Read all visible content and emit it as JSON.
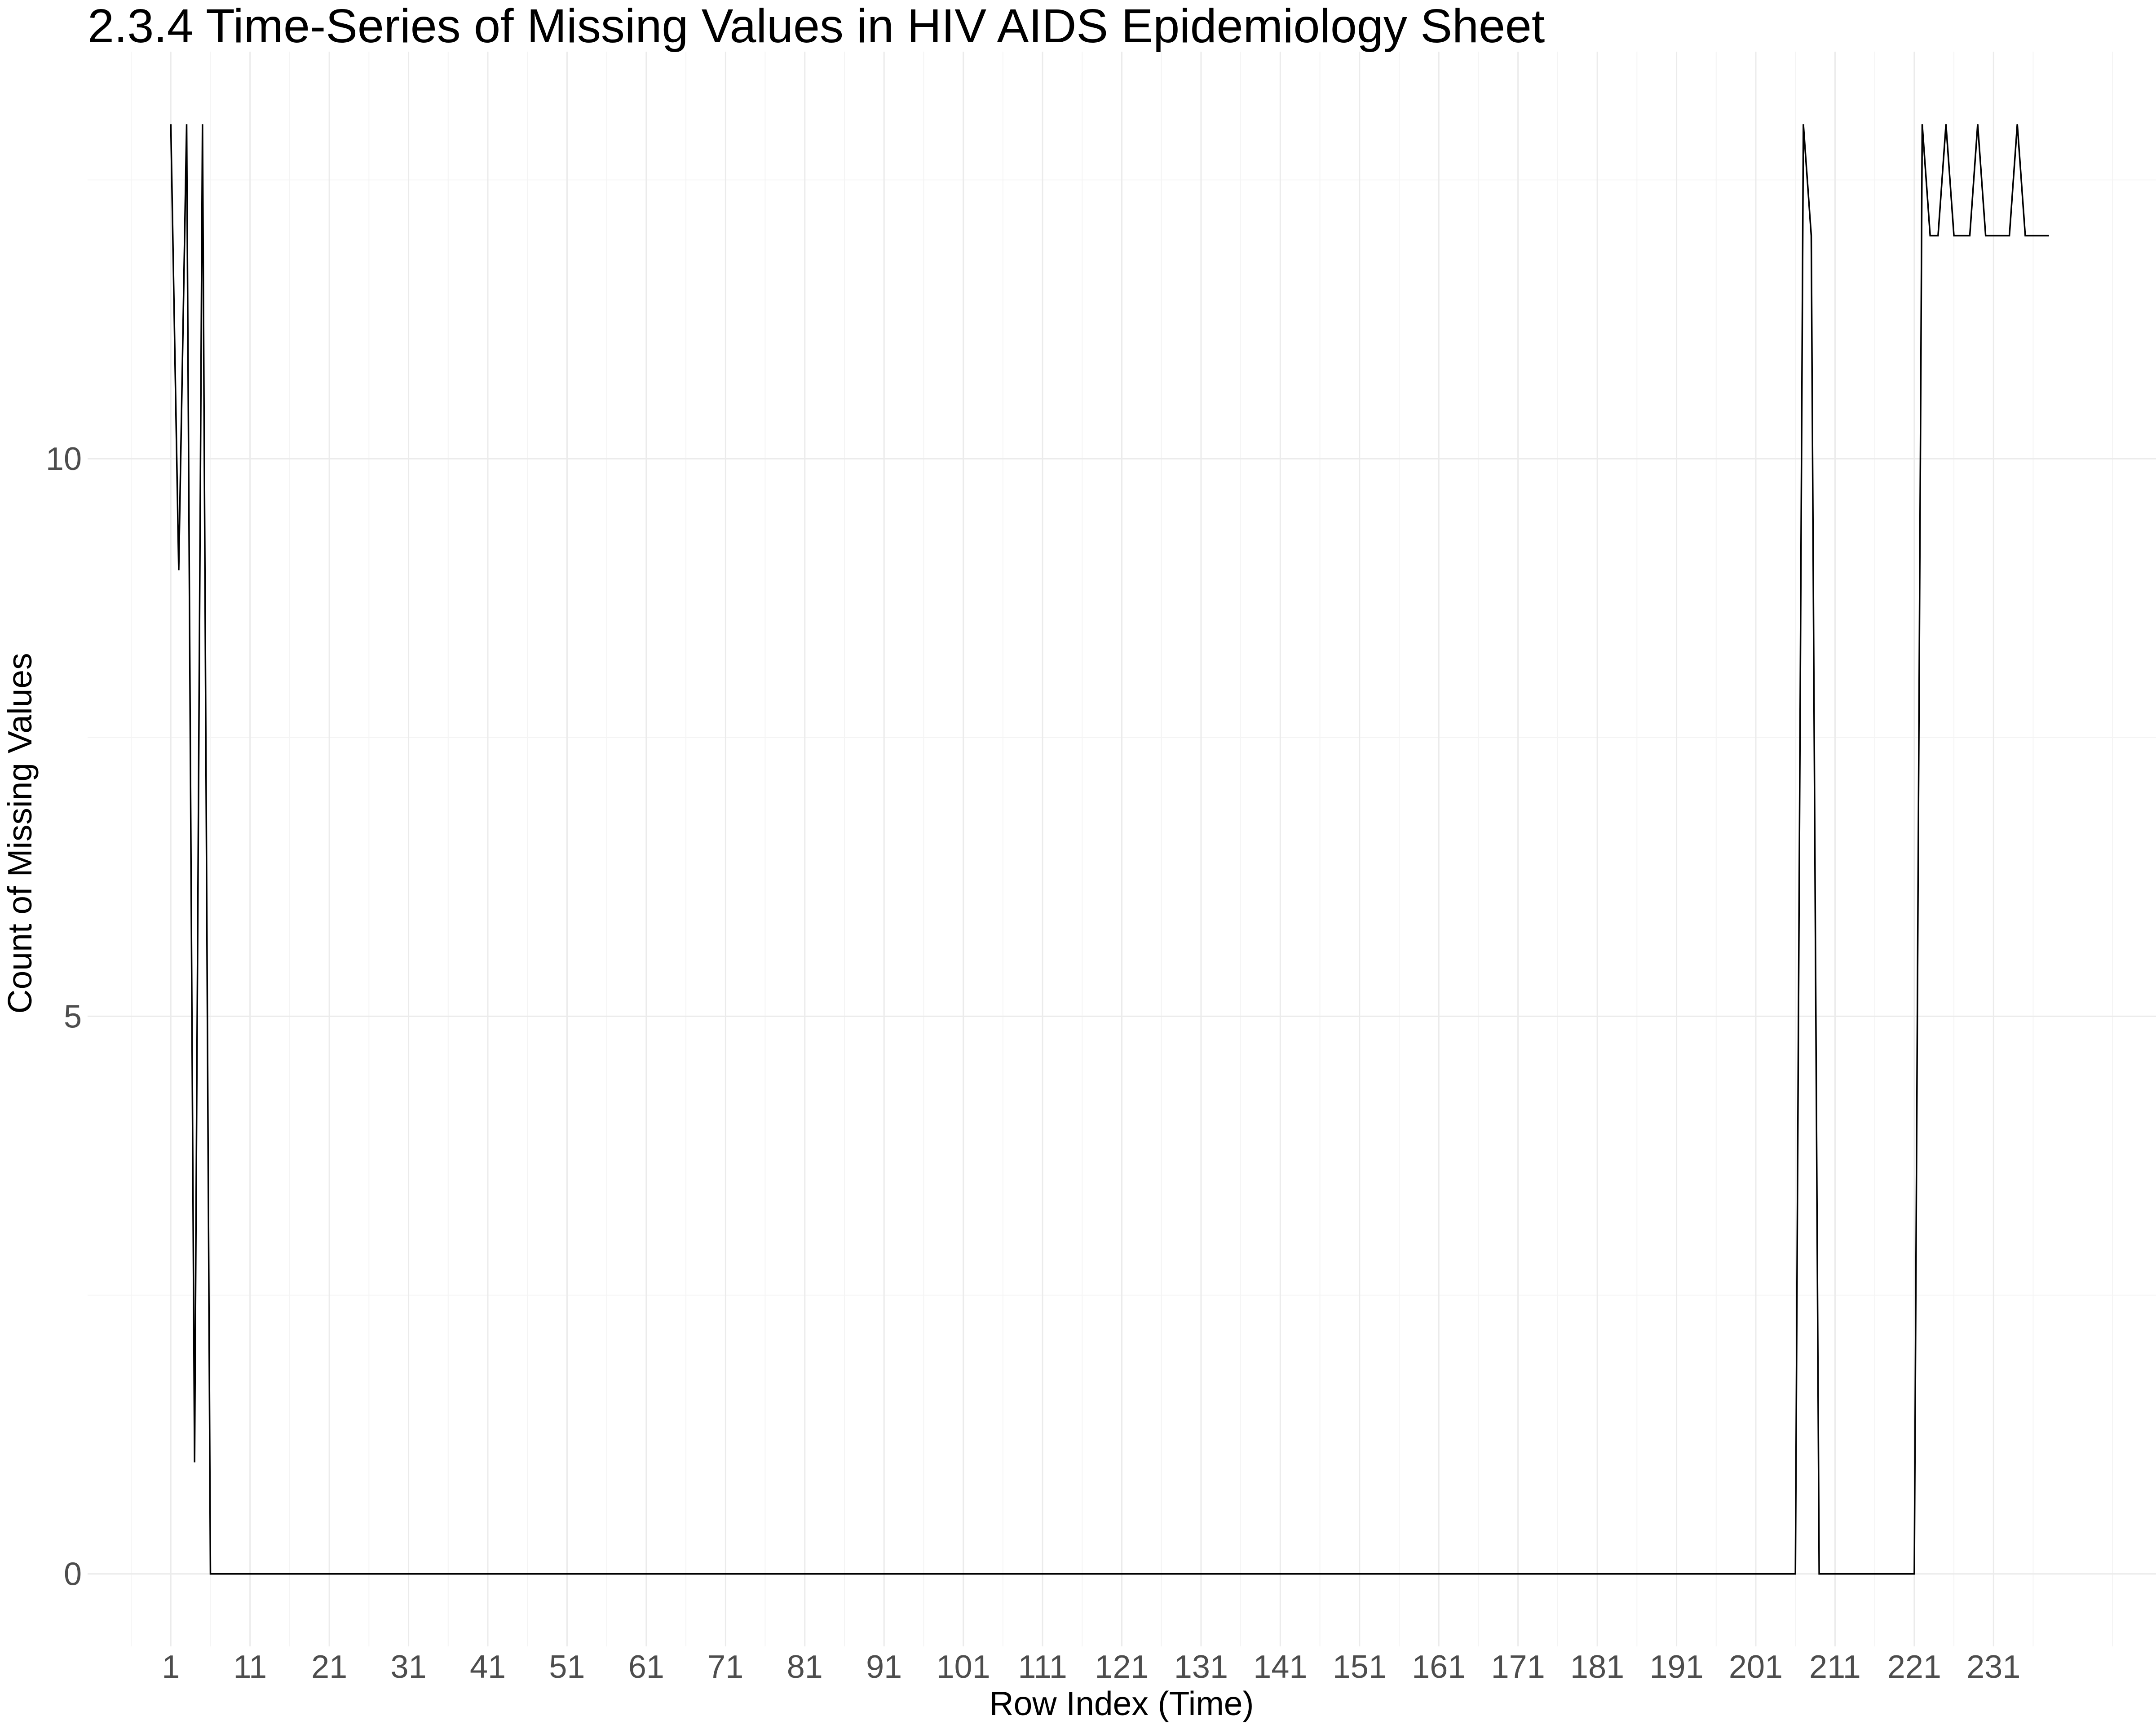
{
  "chart_data": {
    "type": "line",
    "title": "2.3.4 Time-Series of Missing Values in HIV AIDS Epidemiology Sheet",
    "xlabel": "Row Index (Time)",
    "ylabel": "Count of Missing Values",
    "x_ticks": [
      "1",
      "11",
      "21",
      "31",
      "41",
      "51",
      "61",
      "71",
      "81",
      "91",
      "101",
      "111",
      "121",
      "131",
      "141",
      "151",
      "161",
      "171",
      "181",
      "191",
      "201",
      "211",
      "221",
      "231"
    ],
    "y_ticks": [
      0,
      5,
      10
    ],
    "xlim": [
      -9.5,
      251.5
    ],
    "ylim": [
      -0.65,
      13.65
    ],
    "grid": true,
    "series": [
      {
        "points": [
          [
            1,
            13
          ],
          [
            2,
            9
          ],
          [
            3,
            13
          ],
          [
            4,
            1
          ],
          [
            5,
            13
          ],
          [
            6,
            0
          ],
          [
            206,
            0
          ],
          [
            207,
            13
          ],
          [
            208,
            12
          ],
          [
            209,
            0
          ],
          [
            221,
            0
          ],
          [
            222,
            13
          ],
          [
            223,
            12
          ],
          [
            224,
            12
          ],
          [
            225,
            13
          ],
          [
            226,
            12
          ],
          [
            227,
            12
          ],
          [
            228,
            12
          ],
          [
            229,
            13
          ],
          [
            230,
            12
          ],
          [
            231,
            12
          ],
          [
            232,
            12
          ],
          [
            233,
            12
          ],
          [
            234,
            13
          ],
          [
            235,
            12
          ],
          [
            236,
            12
          ],
          [
            237,
            12
          ],
          [
            238,
            12
          ]
        ]
      }
    ]
  }
}
